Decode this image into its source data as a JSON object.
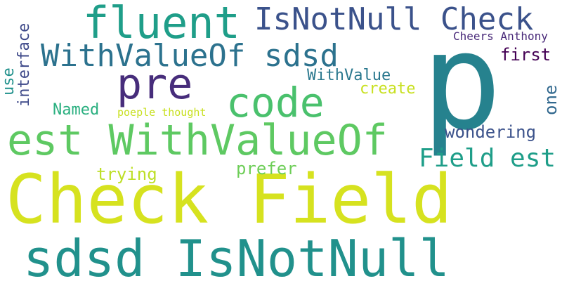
{
  "cloud": {
    "words": {
      "check_field": {
        "text": "Check Field",
        "color": "#d6e21f"
      },
      "p": {
        "text": "p",
        "color": "#26828e"
      },
      "sdsd_isnotnull": {
        "text": "sdsd IsNotNull",
        "color": "#21918c"
      },
      "est_withvalueof": {
        "text": "est WithValueOf",
        "color": "#5ec962"
      },
      "fluent": {
        "text": "fluent",
        "color": "#1f9e89"
      },
      "isnotnull_check": {
        "text": "IsNotNull Check",
        "color": "#3b528b"
      },
      "withvalueof_sdsd": {
        "text": "WithValueOf sdsd",
        "color": "#2c728e"
      },
      "pre": {
        "text": "pre",
        "color": "#472d7b"
      },
      "code": {
        "text": "code",
        "color": "#4ac16d"
      },
      "field_est": {
        "text": "Field est",
        "color": "#1f9e89"
      },
      "wondering": {
        "text": "wondering",
        "color": "#3b528b"
      },
      "cheers_anthony": {
        "text": "Cheers Anthony",
        "color": "#482878"
      },
      "first": {
        "text": "first",
        "color": "#440154"
      },
      "one": {
        "text": "one",
        "color": "#31688e"
      },
      "withvalue": {
        "text": "WithValue",
        "color": "#2a788e"
      },
      "create": {
        "text": "create",
        "color": "#c8e020"
      },
      "named": {
        "text": "Named",
        "color": "#29af7f"
      },
      "poeple_thought": {
        "text": "poeple thought",
        "color": "#c8e020"
      },
      "trying": {
        "text": "trying",
        "color": "#bddf26"
      },
      "prefer": {
        "text": "prefer",
        "color": "#6ece58"
      },
      "interface": {
        "text": "interface",
        "color": "#3e4989"
      },
      "use": {
        "text": "use",
        "color": "#21918c"
      }
    }
  }
}
